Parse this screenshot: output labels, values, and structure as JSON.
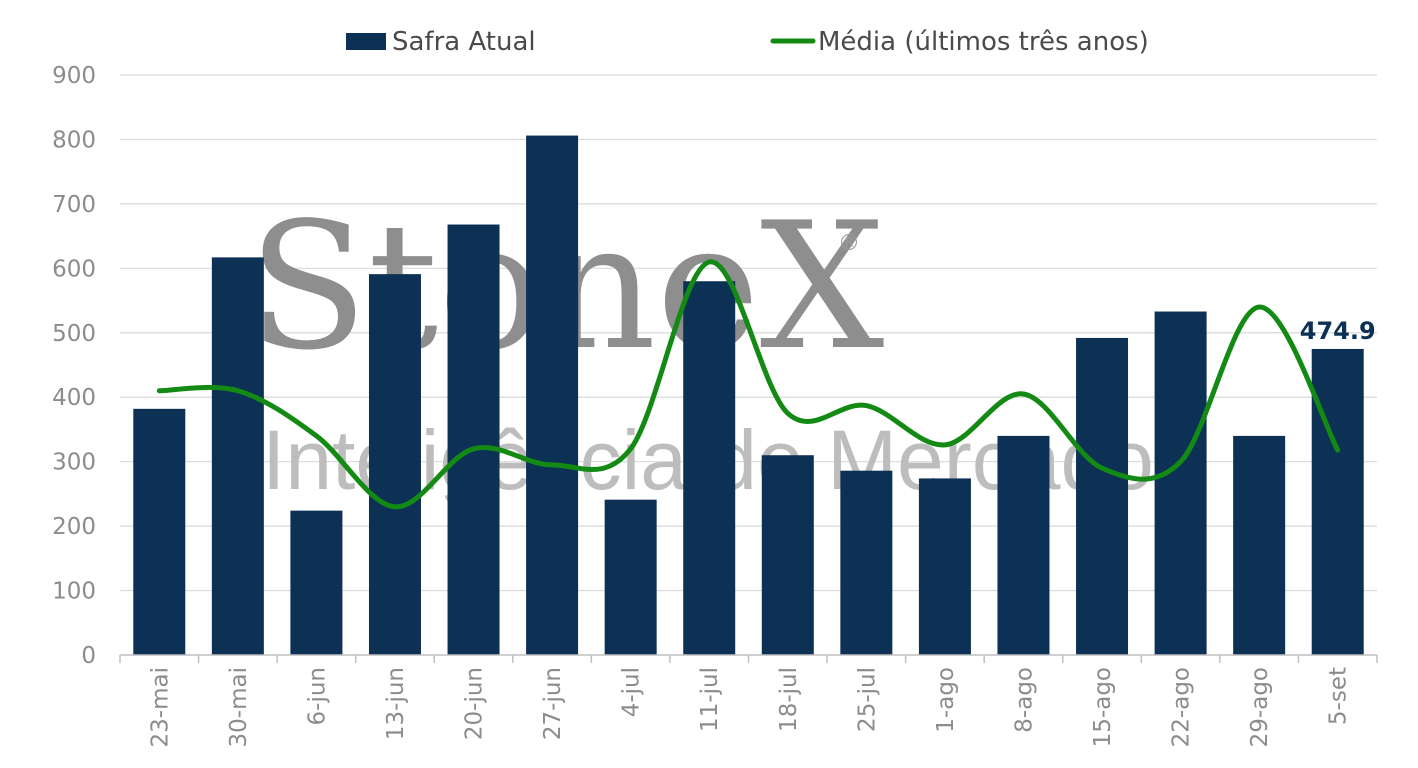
{
  "watermark": {
    "brand": "StoneX",
    "registered": "®",
    "tagline": "Inteligência de Mercado"
  },
  "chart_data": {
    "type": "bar",
    "categories": [
      "23-mai",
      "30-mai",
      "6-jun",
      "13-jun",
      "20-jun",
      "27-jun",
      "4-jul",
      "11-jul",
      "18-jul",
      "25-jul",
      "1-ago",
      "8-ago",
      "15-ago",
      "22-ago",
      "29-ago",
      "5-set"
    ],
    "series": [
      {
        "name": "Safra Atual",
        "kind": "bar",
        "color": "#0d3055",
        "values": [
          382,
          617,
          224,
          591,
          668,
          806,
          241,
          580,
          310,
          286,
          274,
          340,
          492,
          533,
          340,
          474.9
        ]
      },
      {
        "name": "Média (últimos três anos)",
        "kind": "line",
        "color": "#138a13",
        "values": [
          410,
          410,
          340,
          230,
          320,
          295,
          320,
          610,
          375,
          387,
          326,
          405,
          290,
          300,
          540,
          318
        ]
      }
    ],
    "data_labels": [
      {
        "series": "Safra Atual",
        "category": "5-set",
        "text": "474.9"
      }
    ],
    "y_ticks": [
      "0",
      "100",
      "200",
      "300",
      "400",
      "500",
      "600",
      "700",
      "800",
      "900"
    ],
    "ylim": [
      0,
      900
    ],
    "grid": true,
    "legend": "top-center",
    "title": "",
    "xlabel": "",
    "ylabel": ""
  }
}
